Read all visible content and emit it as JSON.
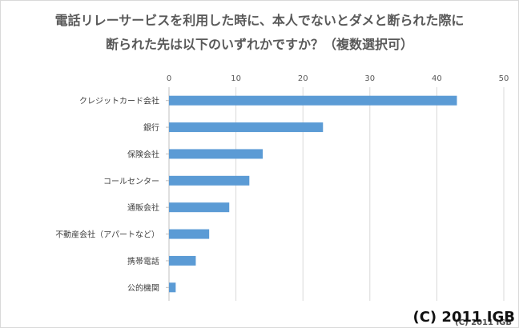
{
  "chart_data": {
    "type": "bar",
    "orientation": "horizontal",
    "title_lines": [
      "電話リレーサービスを利用した時に、本人でないとダメと断られた際に",
      "断られた先は以下のいずれかですか？（複数選択可）"
    ],
    "categories": [
      "クレジットカード会社",
      "銀行",
      "保険会社",
      "コールセンター",
      "通販会社",
      "不動産会社（アパートなど）",
      "携帯電話",
      "公的機関"
    ],
    "values": [
      43,
      23,
      14,
      12,
      9,
      6,
      4,
      1
    ],
    "xlim": [
      0,
      50
    ],
    "xticks": [
      "0",
      "10",
      "20",
      "30",
      "40",
      "50"
    ],
    "x_axis_position": "top",
    "grid": true,
    "bar_color": "#5B9BD5",
    "legend": "none"
  },
  "copyright": "(C) 2011 IGB"
}
